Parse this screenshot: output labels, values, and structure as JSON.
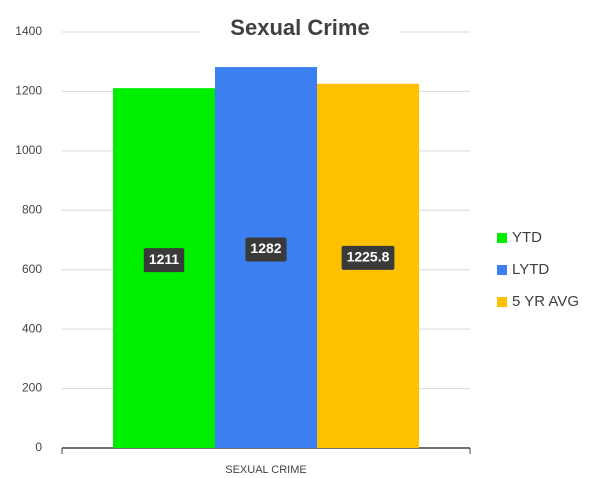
{
  "chart_data": {
    "type": "bar",
    "title": "Sexual Crime",
    "categories": [
      "SEXUAL CRIME"
    ],
    "series": [
      {
        "name": "YTD",
        "color": "#00ee00",
        "values": [
          1211
        ]
      },
      {
        "name": "LYTD",
        "color": "#3c7ff0",
        "values": [
          1282
        ]
      },
      {
        "name": "5 YR AVG",
        "color": "#ffc000",
        "values": [
          1225.8
        ]
      }
    ],
    "ylim": [
      0,
      1400
    ],
    "yticks": [
      0,
      200,
      400,
      600,
      800,
      1000,
      1200,
      1400
    ],
    "grid": true,
    "legend": "right"
  }
}
